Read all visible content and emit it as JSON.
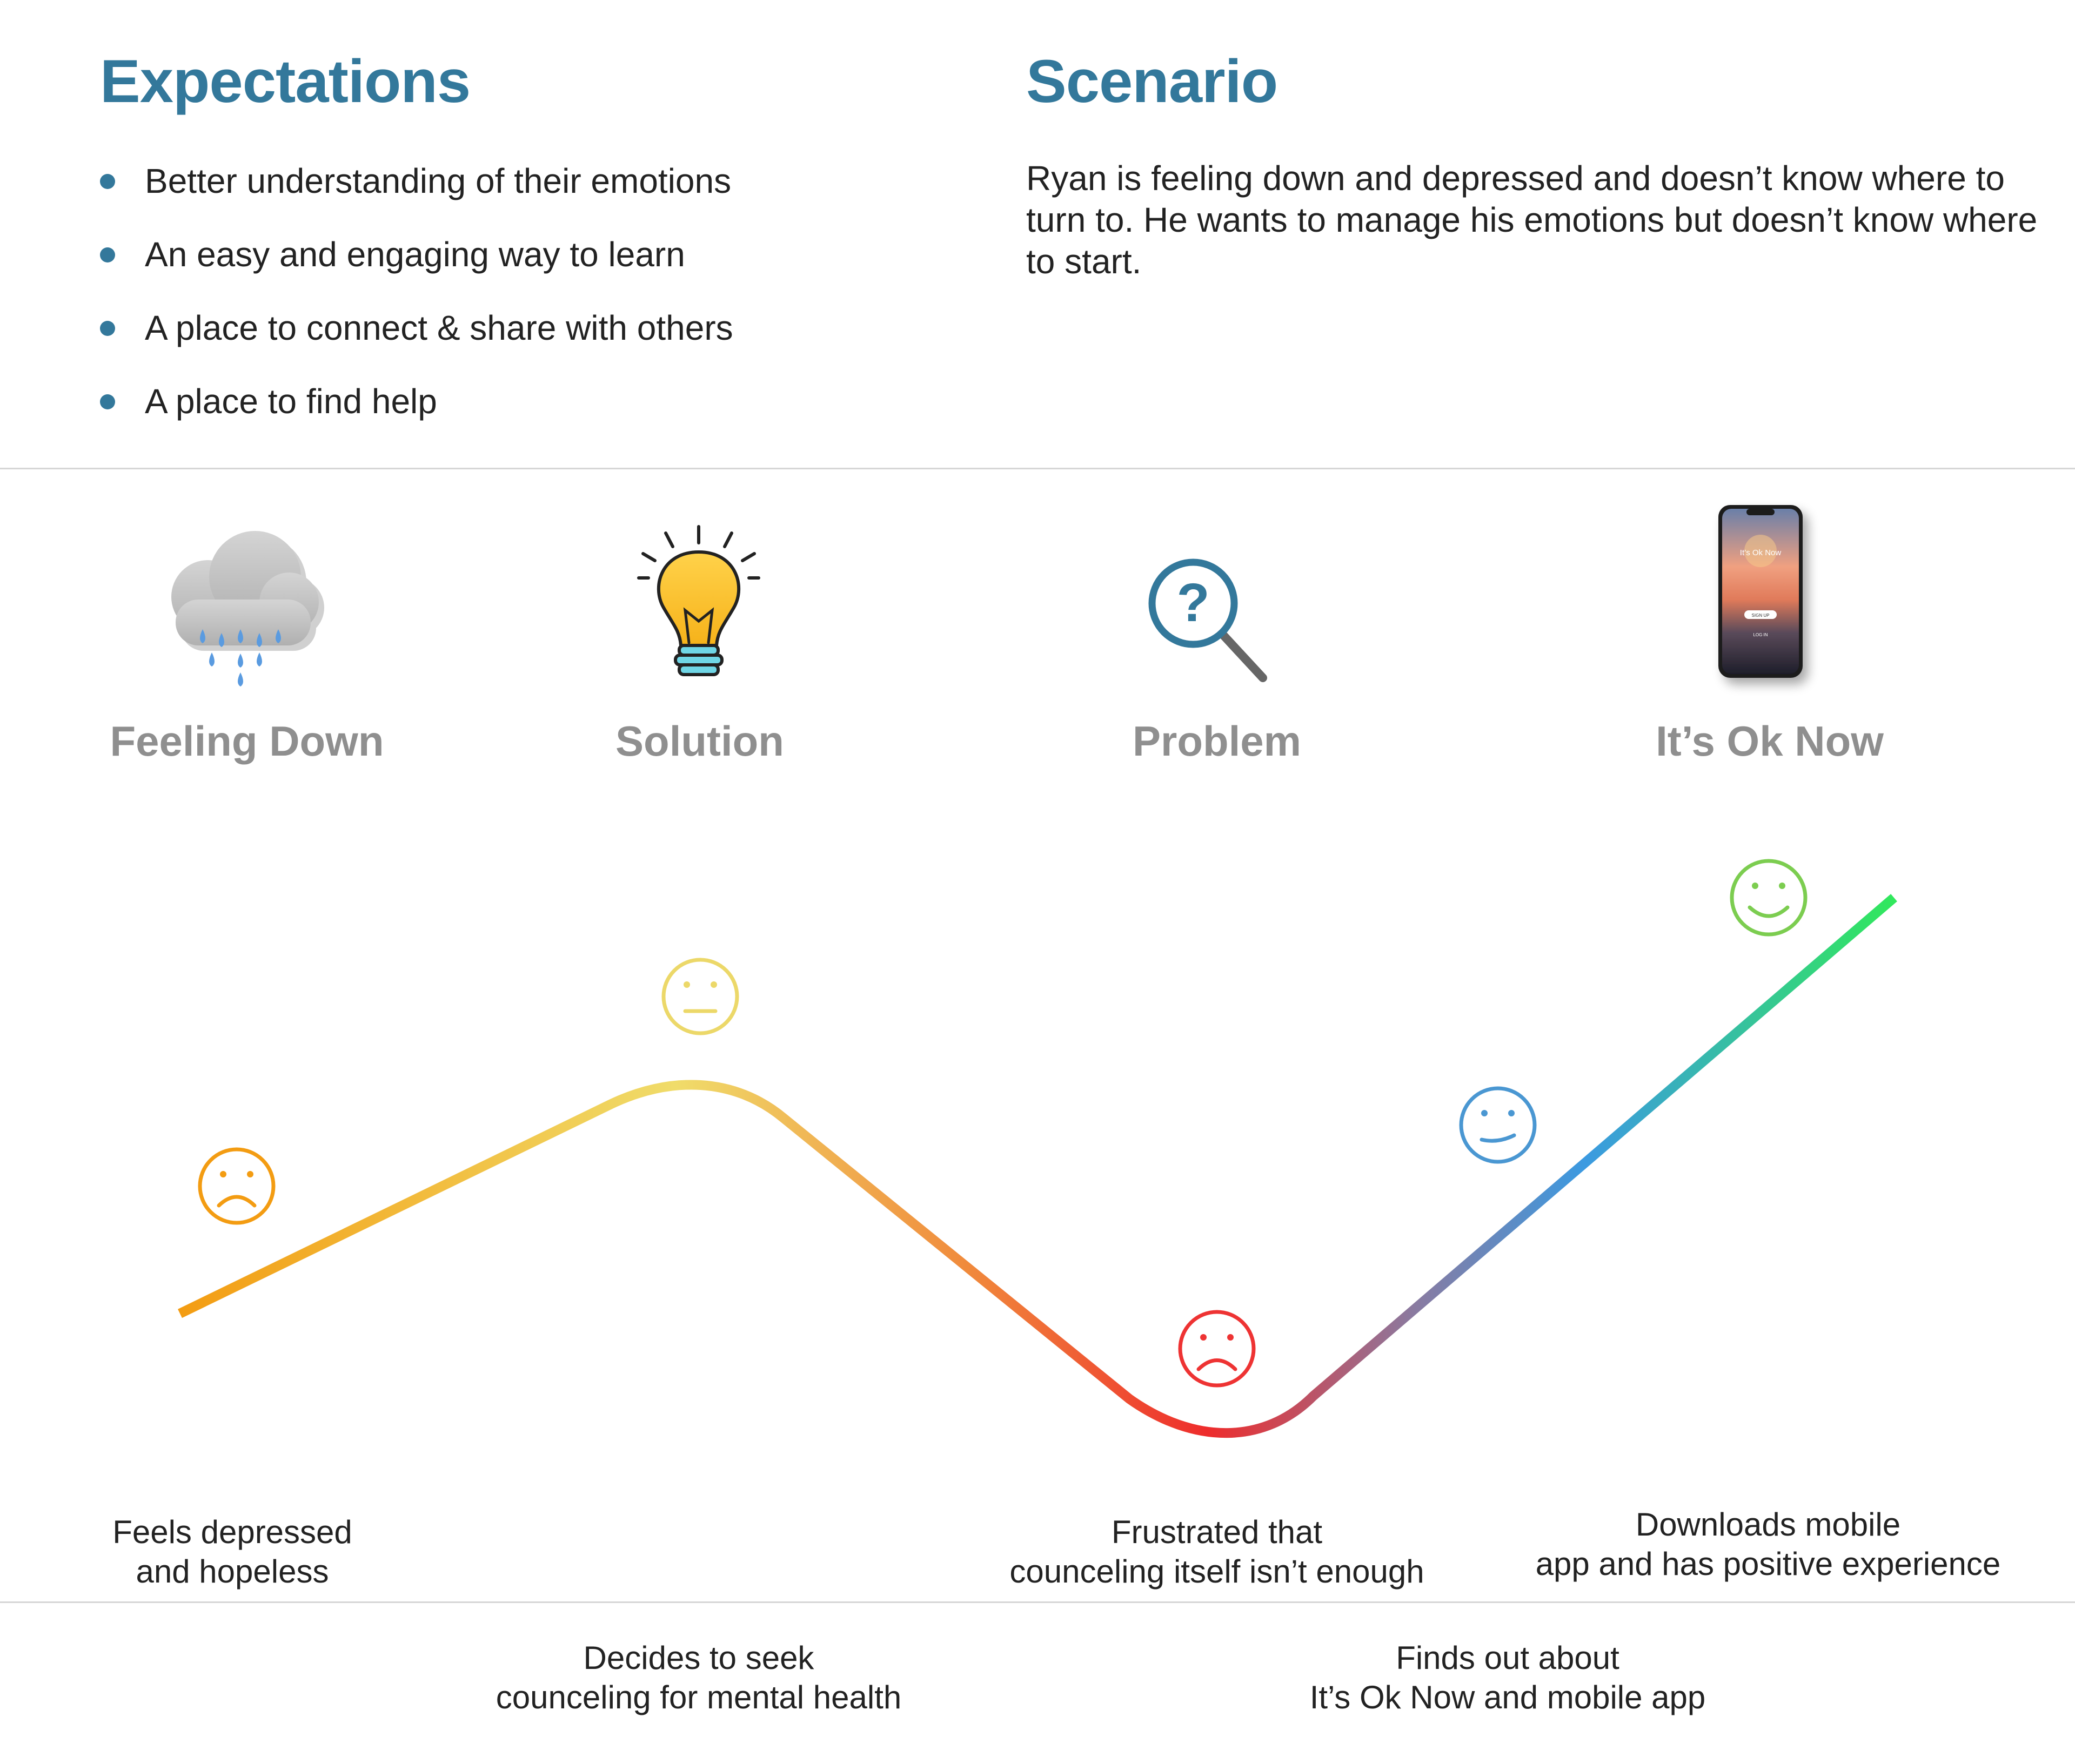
{
  "expectations": {
    "title": "Expectations",
    "items": [
      "Better understanding of their emotions",
      "An easy and engaging way to learn",
      "A place to connect & share with others",
      "A place to find help"
    ]
  },
  "scenario": {
    "title": "Scenario",
    "text": "Ryan is feeling down and depressed and doesn’t know where to turn to. He wants to manage his emotions but doesn’t know where to start."
  },
  "stages": [
    {
      "label": "Feeling Down",
      "icon": "rain-cloud-icon"
    },
    {
      "label": "Solution",
      "icon": "lightbulb-icon"
    },
    {
      "label": "Problem",
      "icon": "magnifier-question-icon"
    },
    {
      "label": "It’s Ok Now",
      "icon": "smartphone-icon"
    }
  ],
  "phone_screen": {
    "title": "It’s Ok Now",
    "primary_button": "SIGN UP",
    "secondary_button": "LOG IN"
  },
  "journey": {
    "colors": {
      "orange": "#f39c12",
      "yellow": "#f0dc6a",
      "red": "#ee2c2c",
      "blue": "#3b9ae1",
      "green": "#31e85c",
      "accent": "#33789b",
      "label_gray": "#8f8f8f"
    },
    "emotions": [
      {
        "face": "sad-face-icon",
        "color": "#f39c12"
      },
      {
        "face": "neutral-face-icon",
        "color": "#ecd869"
      },
      {
        "face": "frown-face-icon",
        "color": "#ee3333"
      },
      {
        "face": "slight-smile-face-icon",
        "color": "#4a97d2"
      },
      {
        "face": "happy-face-icon",
        "color": "#7ccd50"
      }
    ],
    "captions": [
      "Feels depressed\nand hopeless",
      "Decides to seek\ncounceling for mental health",
      "Frustrated that\ncounceling itself isn’t enough",
      "Finds out about\nIt’s Ok Now and mobile app",
      "Downloads mobile\napp and has positive experience"
    ]
  }
}
